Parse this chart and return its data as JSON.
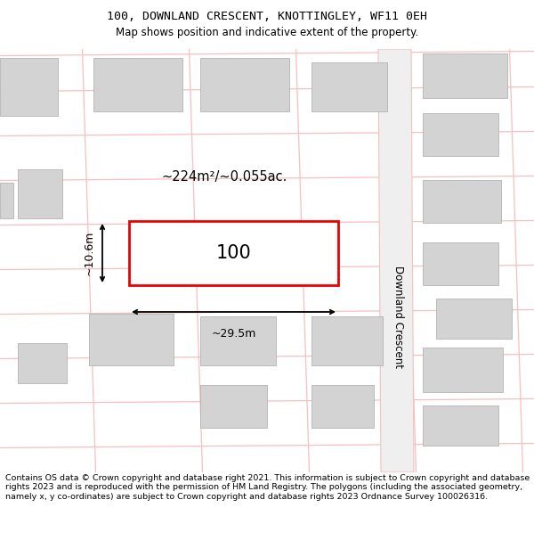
{
  "title_line1": "100, DOWNLAND CRESCENT, KNOTTINGLEY, WF11 0EH",
  "title_line2": "Map shows position and indicative extent of the property.",
  "footer_text": "Contains OS data © Crown copyright and database right 2021. This information is subject to Crown copyright and database rights 2023 and is reproduced with the permission of HM Land Registry. The polygons (including the associated geometry, namely x, y co-ordinates) are subject to Crown copyright and database rights 2023 Ordnance Survey 100026316.",
  "bg_color": "#ffffff",
  "road_color": "#f5c0c0",
  "building_color": "#d3d3d3",
  "plot_color": "#ee0000",
  "plot_label": "100",
  "area_label": "~224m²/~0.055ac.",
  "width_label": "~29.5m",
  "height_label": "~10.6m",
  "street_label": "Downland Crescent",
  "title_fontsize": 9.5,
  "subtitle_fontsize": 8.5,
  "footer_fontsize": 6.8
}
